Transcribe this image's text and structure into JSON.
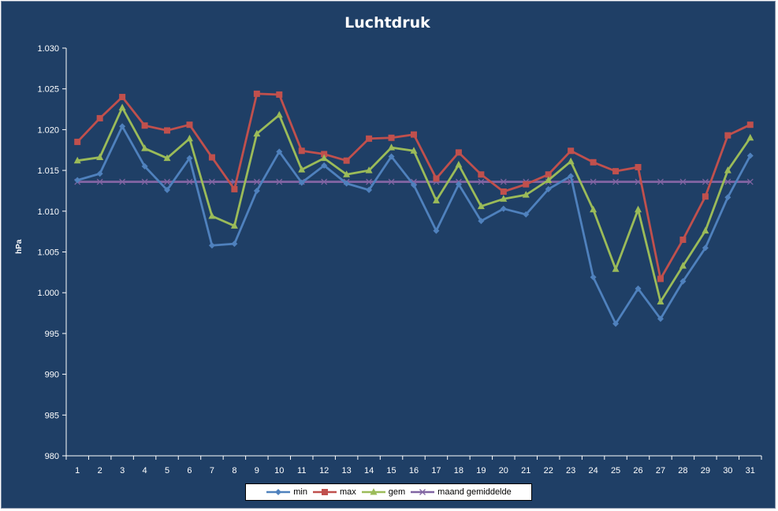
{
  "chart_data": {
    "type": "line",
    "title": "Luchtdruk",
    "xlabel": "",
    "ylabel": "hPa",
    "ylim": [
      980,
      1030
    ],
    "yticks": [
      980,
      985,
      990,
      995,
      1000,
      1005,
      1010,
      1015,
      1020,
      1025,
      1030
    ],
    "ytick_labels": [
      "980",
      "985",
      "990",
      "995",
      "1.000",
      "1.005",
      "1.010",
      "1.015",
      "1.020",
      "1.025",
      "1.030"
    ],
    "categories": [
      "1",
      "2",
      "3",
      "4",
      "5",
      "6",
      "7",
      "8",
      "9",
      "10",
      "11",
      "12",
      "13",
      "14",
      "15",
      "16",
      "17",
      "18",
      "19",
      "20",
      "21",
      "22",
      "23",
      "24",
      "25",
      "26",
      "27",
      "28",
      "29",
      "30",
      "31"
    ],
    "grid": false,
    "legend_position": "bottom",
    "series": [
      {
        "name": "min",
        "color": "#4f81bd",
        "marker": "diamond",
        "values": [
          1013.8,
          1014.6,
          1020.4,
          1015.5,
          1012.6,
          1016.5,
          1005.8,
          1006.0,
          1012.5,
          1017.3,
          1013.5,
          1015.6,
          1013.4,
          1012.6,
          1016.7,
          1013.2,
          1007.6,
          1013.3,
          1008.8,
          1010.3,
          1009.6,
          1012.7,
          1014.3,
          1001.9,
          996.2,
          1000.5,
          996.8,
          1001.4,
          1005.5,
          1011.7,
          1016.8
        ]
      },
      {
        "name": "max",
        "color": "#c0504d",
        "marker": "square",
        "values": [
          1018.5,
          1021.4,
          1024.0,
          1020.5,
          1019.9,
          1020.6,
          1016.6,
          1012.7,
          1024.4,
          1024.3,
          1017.4,
          1017.0,
          1016.2,
          1018.9,
          1019.0,
          1019.4,
          1014.0,
          1017.2,
          1014.5,
          1012.4,
          1013.3,
          1014.5,
          1017.4,
          1016.0,
          1014.9,
          1015.4,
          1001.7,
          1006.5,
          1011.8,
          1019.3,
          1020.6
        ]
      },
      {
        "name": "gem",
        "color": "#9bbb59",
        "marker": "triangle",
        "values": [
          1016.2,
          1016.6,
          1022.7,
          1017.7,
          1016.5,
          1018.9,
          1009.4,
          1008.2,
          1019.5,
          1021.8,
          1015.1,
          1016.5,
          1014.5,
          1015.0,
          1017.8,
          1017.4,
          1011.3,
          1015.7,
          1010.6,
          1011.5,
          1012.0,
          1013.8,
          1016.1,
          1010.2,
          1002.9,
          1010.2,
          998.9,
          1003.3,
          1007.6,
          1015.0,
          1019.0
        ]
      },
      {
        "name": "maand gemiddelde",
        "color": "#8064a2",
        "marker": "x",
        "values": [
          1013.6,
          1013.6,
          1013.6,
          1013.6,
          1013.6,
          1013.6,
          1013.6,
          1013.6,
          1013.6,
          1013.6,
          1013.6,
          1013.6,
          1013.6,
          1013.6,
          1013.6,
          1013.6,
          1013.6,
          1013.6,
          1013.6,
          1013.6,
          1013.6,
          1013.6,
          1013.6,
          1013.6,
          1013.6,
          1013.6,
          1013.6,
          1013.6,
          1013.6,
          1013.6,
          1013.6
        ]
      }
    ]
  }
}
